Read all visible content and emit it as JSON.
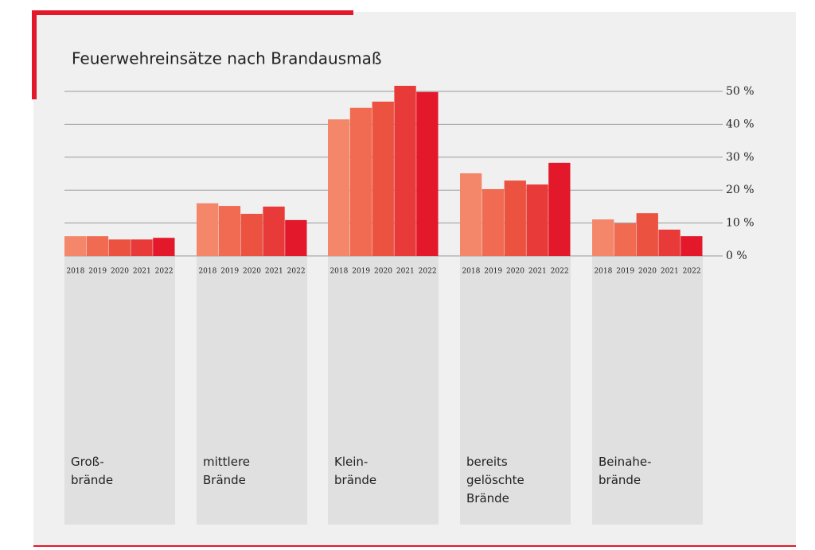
{
  "chart_data": {
    "type": "bar",
    "title": "Feuerwehreinsätze nach Brandausmaß",
    "categories": [
      "Groß-\nbrände",
      "mittlere\nBrände",
      "Klein-\nbrände",
      "bereits\ngelöschte\nBrände",
      "Beinahe-\nbrände"
    ],
    "series": [
      {
        "name": "2018",
        "color": "#f4876a",
        "values": [
          6,
          16,
          41.5,
          25.1,
          11.1
        ]
      },
      {
        "name": "2019",
        "color": "#f06b52",
        "values": [
          6,
          15.2,
          45,
          20.3,
          9.9
        ]
      },
      {
        "name": "2020",
        "color": "#ec5240",
        "values": [
          5,
          12.8,
          46.9,
          22.9,
          13
        ]
      },
      {
        "name": "2021",
        "color": "#e83a38",
        "values": [
          5,
          15,
          51.7,
          21.7,
          8
        ]
      },
      {
        "name": "2022",
        "color": "#e3182a",
        "values": [
          5.5,
          10.9,
          49.8,
          28.3,
          6
        ]
      }
    ],
    "ylim": [
      0,
      53
    ],
    "yticks": [
      {
        "value": 0,
        "label": "0 %"
      },
      {
        "value": 10,
        "label": "10 %"
      },
      {
        "value": 20,
        "label": "20 %"
      },
      {
        "value": 30,
        "label": "30 %"
      },
      {
        "value": 40,
        "label": "40 %"
      },
      {
        "value": 50,
        "label": "50 %"
      }
    ],
    "grid": true
  }
}
